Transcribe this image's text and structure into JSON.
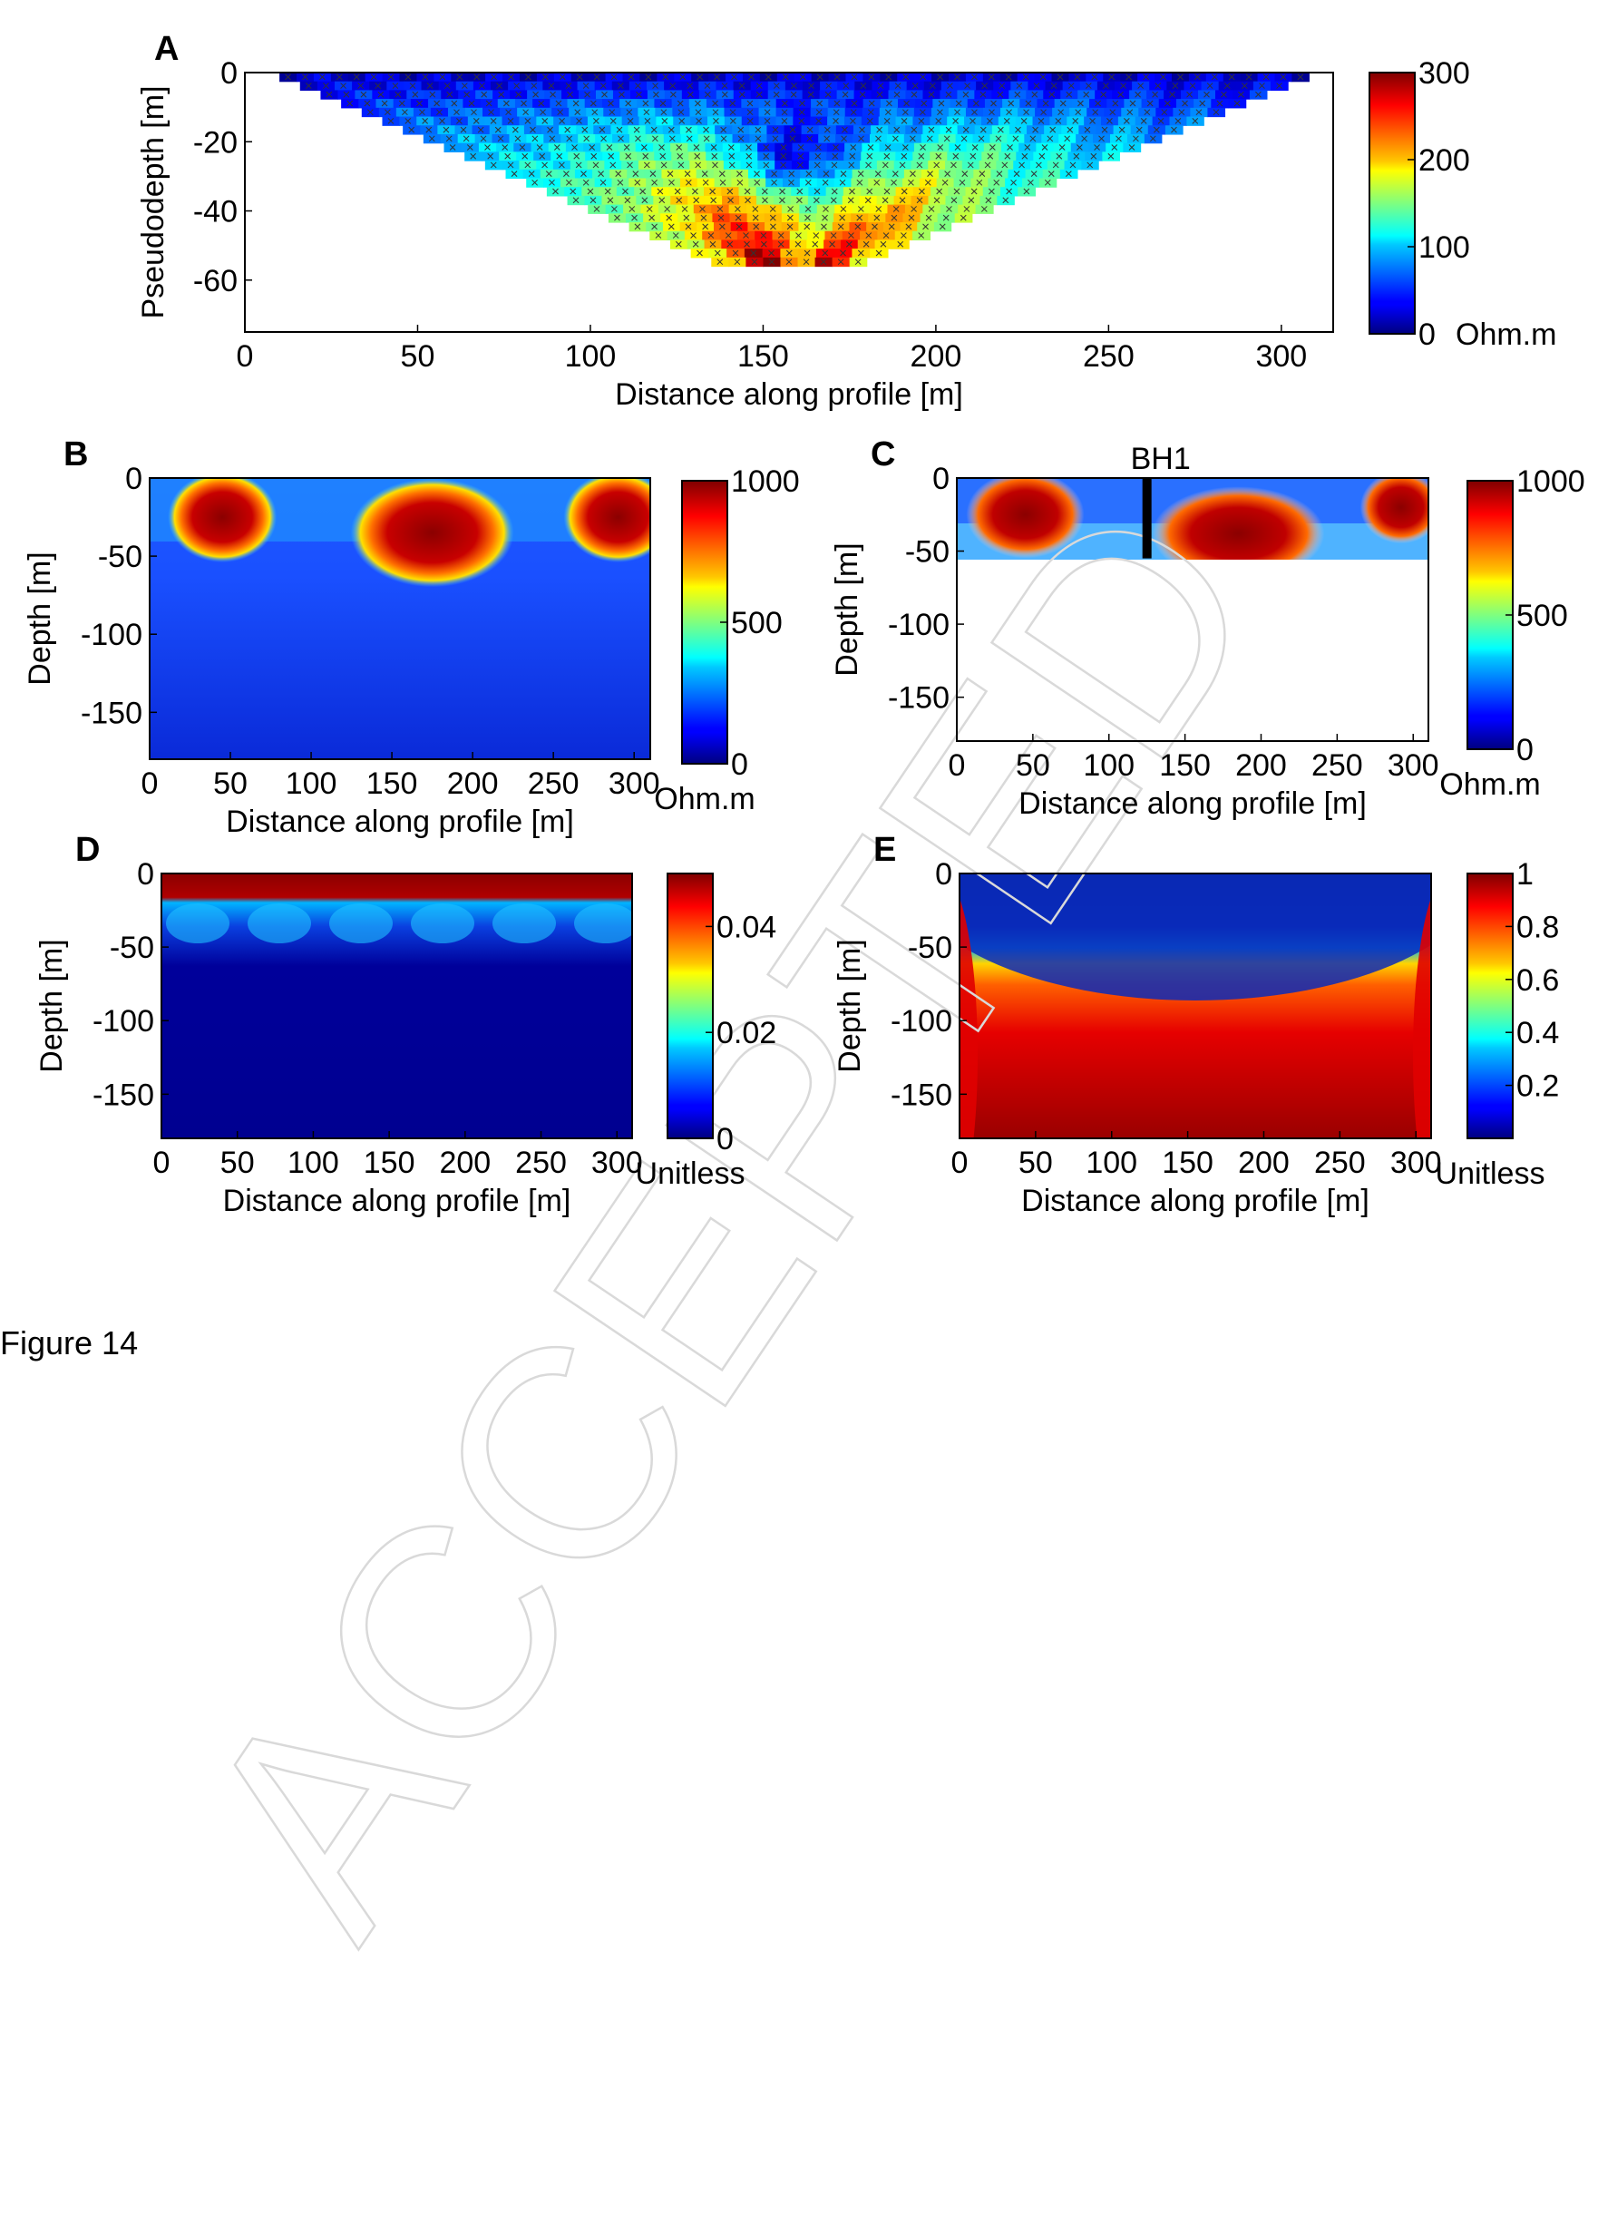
{
  "figure_caption": "Figure 14",
  "watermark": "ACCEPTED",
  "colors": {
    "jet_low": "#00007f",
    "jet_mid": "#7fff7f",
    "jet_high": "#7f0000"
  },
  "chart_data": [
    {
      "id": "A",
      "type": "heatmap",
      "panel_label": "A",
      "xlabel": "Distance along profile [m]",
      "ylabel": "Pseudodepth [m]",
      "xlim": [
        0,
        315
      ],
      "ylim": [
        -75,
        0
      ],
      "xticks": [
        "0",
        "50",
        "100",
        "150",
        "200",
        "250",
        "300"
      ],
      "yticks": [
        "0",
        "-20",
        "-40",
        "-60"
      ],
      "colorbar": {
        "min": 0,
        "max": 300,
        "ticks": [
          "300",
          "200",
          "100",
          "0"
        ],
        "unit": "Ohm.m"
      },
      "shape": "inverted-trapezoid pseudosection with data markers",
      "pseudosection_extent": {
        "top_x": [
          10,
          308
        ],
        "bottom_x": [
          135,
          180
        ],
        "max_depth": -56
      }
    },
    {
      "id": "B",
      "type": "heatmap",
      "panel_label": "B",
      "xlabel": "Distance along profile [m]",
      "ylabel": "Depth [m]",
      "xlim": [
        0,
        310
      ],
      "ylim": [
        -180,
        0
      ],
      "xticks": [
        "0",
        "50",
        "100",
        "150",
        "200",
        "250",
        "300"
      ],
      "yticks": [
        "0",
        "-50",
        "-100",
        "-150"
      ],
      "colorbar": {
        "min": 0,
        "max": 1000,
        "ticks": [
          "1000",
          "500",
          "0"
        ],
        "unit": "Ohm.m"
      },
      "anomalies": [
        {
          "x": 45,
          "y": -25,
          "note": "resistive arc"
        },
        {
          "x": 175,
          "y": -35,
          "note": "resistive body"
        },
        {
          "x": 290,
          "y": -25,
          "note": "resistive arc"
        }
      ]
    },
    {
      "id": "C",
      "type": "heatmap",
      "panel_label": "C",
      "title": "BH1",
      "xlabel": "Distance along profile [m]",
      "ylabel": "Depth [m]",
      "xlim": [
        0,
        310
      ],
      "ylim": [
        -180,
        0
      ],
      "xticks": [
        "0",
        "50",
        "100",
        "150",
        "200",
        "250",
        "300"
      ],
      "yticks": [
        "0",
        "-50",
        "-100",
        "-150"
      ],
      "colorbar": {
        "min": 0,
        "max": 1000,
        "ticks": [
          "1000",
          "500",
          "0"
        ],
        "unit": "Ohm.m"
      },
      "borehole_x": 125,
      "borehole_depth": -55,
      "masked_below": -55
    },
    {
      "id": "D",
      "type": "heatmap",
      "panel_label": "D",
      "xlabel": "Distance along profile [m]",
      "ylabel": "Depth [m]",
      "xlim": [
        0,
        310
      ],
      "ylim": [
        -180,
        0
      ],
      "xticks": [
        "0",
        "50",
        "100",
        "150",
        "200",
        "250",
        "300"
      ],
      "yticks": [
        "0",
        "-50",
        "-100",
        "-150"
      ],
      "colorbar": {
        "min": 0,
        "max": 0.05,
        "ticks": [
          "0.04",
          "0.02",
          "0"
        ],
        "unit": "Unitless"
      }
    },
    {
      "id": "E",
      "type": "heatmap",
      "panel_label": "E",
      "xlabel": "Distance along profile [m]",
      "ylabel": "Depth [m]",
      "xlim": [
        0,
        310
      ],
      "ylim": [
        -180,
        0
      ],
      "xticks": [
        "0",
        "50",
        "100",
        "150",
        "200",
        "250",
        "300"
      ],
      "yticks": [
        "0",
        "-50",
        "-100",
        "-150"
      ],
      "colorbar": {
        "min": 0,
        "max": 1,
        "ticks": [
          "1",
          "0.8",
          "0.6",
          "0.4",
          "0.2"
        ],
        "unit": "Unitless"
      }
    }
  ]
}
